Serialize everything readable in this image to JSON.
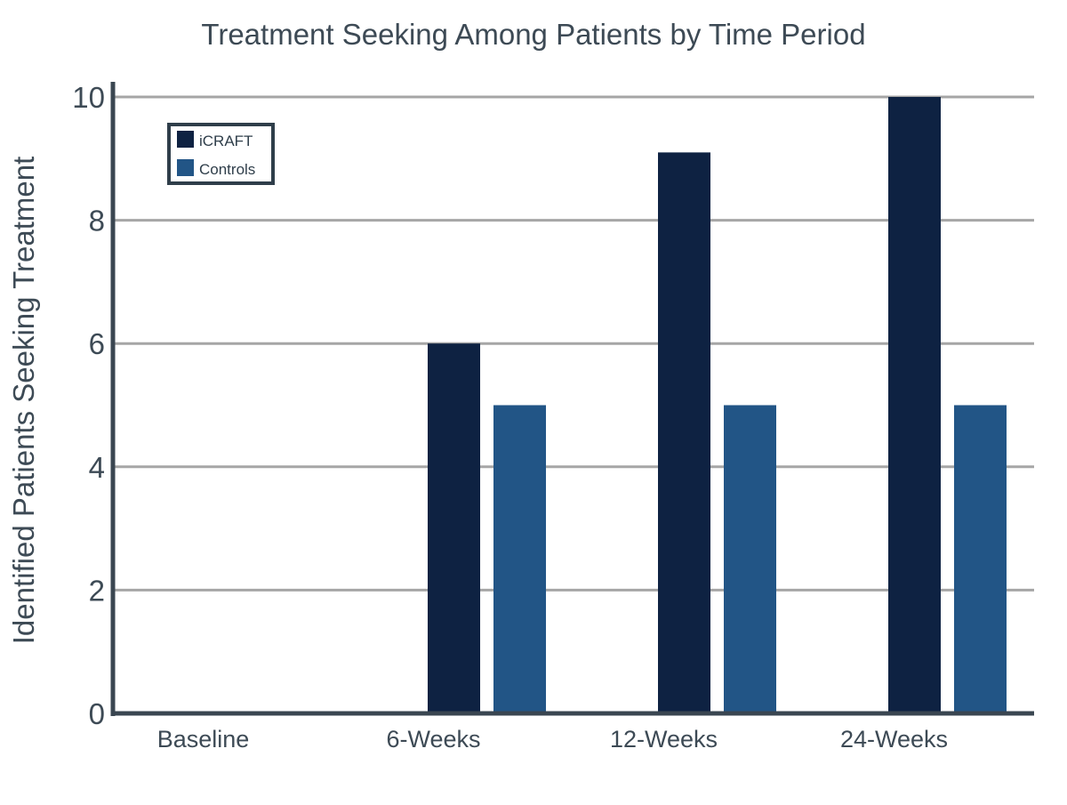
{
  "chart_data": {
    "type": "bar",
    "title": "Treatment Seeking Among Patients by Time Period",
    "xlabel": "",
    "ylabel": "Identified Patients Seeking Treatment",
    "categories": [
      "Baseline",
      "6-Weeks",
      "12-Weeks",
      "24-Weeks"
    ],
    "series": [
      {
        "name": "iCRAFT",
        "values": [
          0,
          6,
          9.1,
          10
        ],
        "color": "#0e2242"
      },
      {
        "name": "Controls",
        "values": [
          0,
          5,
          5,
          5
        ],
        "color": "#225586"
      }
    ],
    "ylim": [
      0,
      10
    ],
    "yticks": [
      "0",
      "2",
      "4",
      "6",
      "8",
      "10"
    ],
    "grid": true,
    "legend_position": "top-left",
    "colors": {
      "axis": "#3a4651",
      "grid": "#a6a6a6",
      "text": "#3d4a55"
    }
  }
}
